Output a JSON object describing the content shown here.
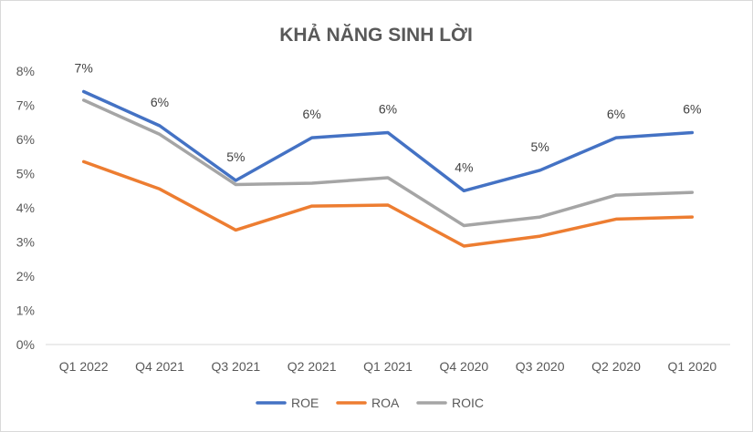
{
  "chart_data": {
    "type": "line",
    "title": "KHẢ NĂNG SINH LỜI",
    "xlabel": "",
    "ylabel": "",
    "categories": [
      "Q1 2022",
      "Q4 2021",
      "Q3 2021",
      "Q2 2021",
      "Q1 2021",
      "Q4 2020",
      "Q3 2020",
      "Q2 2020",
      "Q1 2020"
    ],
    "ylim": [
      0,
      8
    ],
    "y_ticks": [
      "0%",
      "1%",
      "2%",
      "3%",
      "4%",
      "5%",
      "6%",
      "7%",
      "8%"
    ],
    "grid": false,
    "legend_position": "bottom",
    "series": [
      {
        "name": "ROE",
        "color": "#4472c4",
        "values": [
          7.4,
          6.4,
          4.8,
          6.05,
          6.2,
          4.5,
          5.1,
          6.05,
          6.2
        ],
        "data_labels": [
          "7%",
          "6%",
          "5%",
          "6%",
          "6%",
          "4%",
          "5%",
          "6%",
          "6%"
        ]
      },
      {
        "name": "ROA",
        "color": "#ed7d31",
        "values": [
          5.35,
          4.55,
          3.35,
          4.05,
          4.08,
          2.88,
          3.17,
          3.67,
          3.73
        ]
      },
      {
        "name": "ROIC",
        "color": "#a5a5a5",
        "values": [
          7.15,
          6.15,
          4.68,
          4.72,
          4.88,
          3.48,
          3.73,
          4.37,
          4.45
        ]
      }
    ]
  }
}
